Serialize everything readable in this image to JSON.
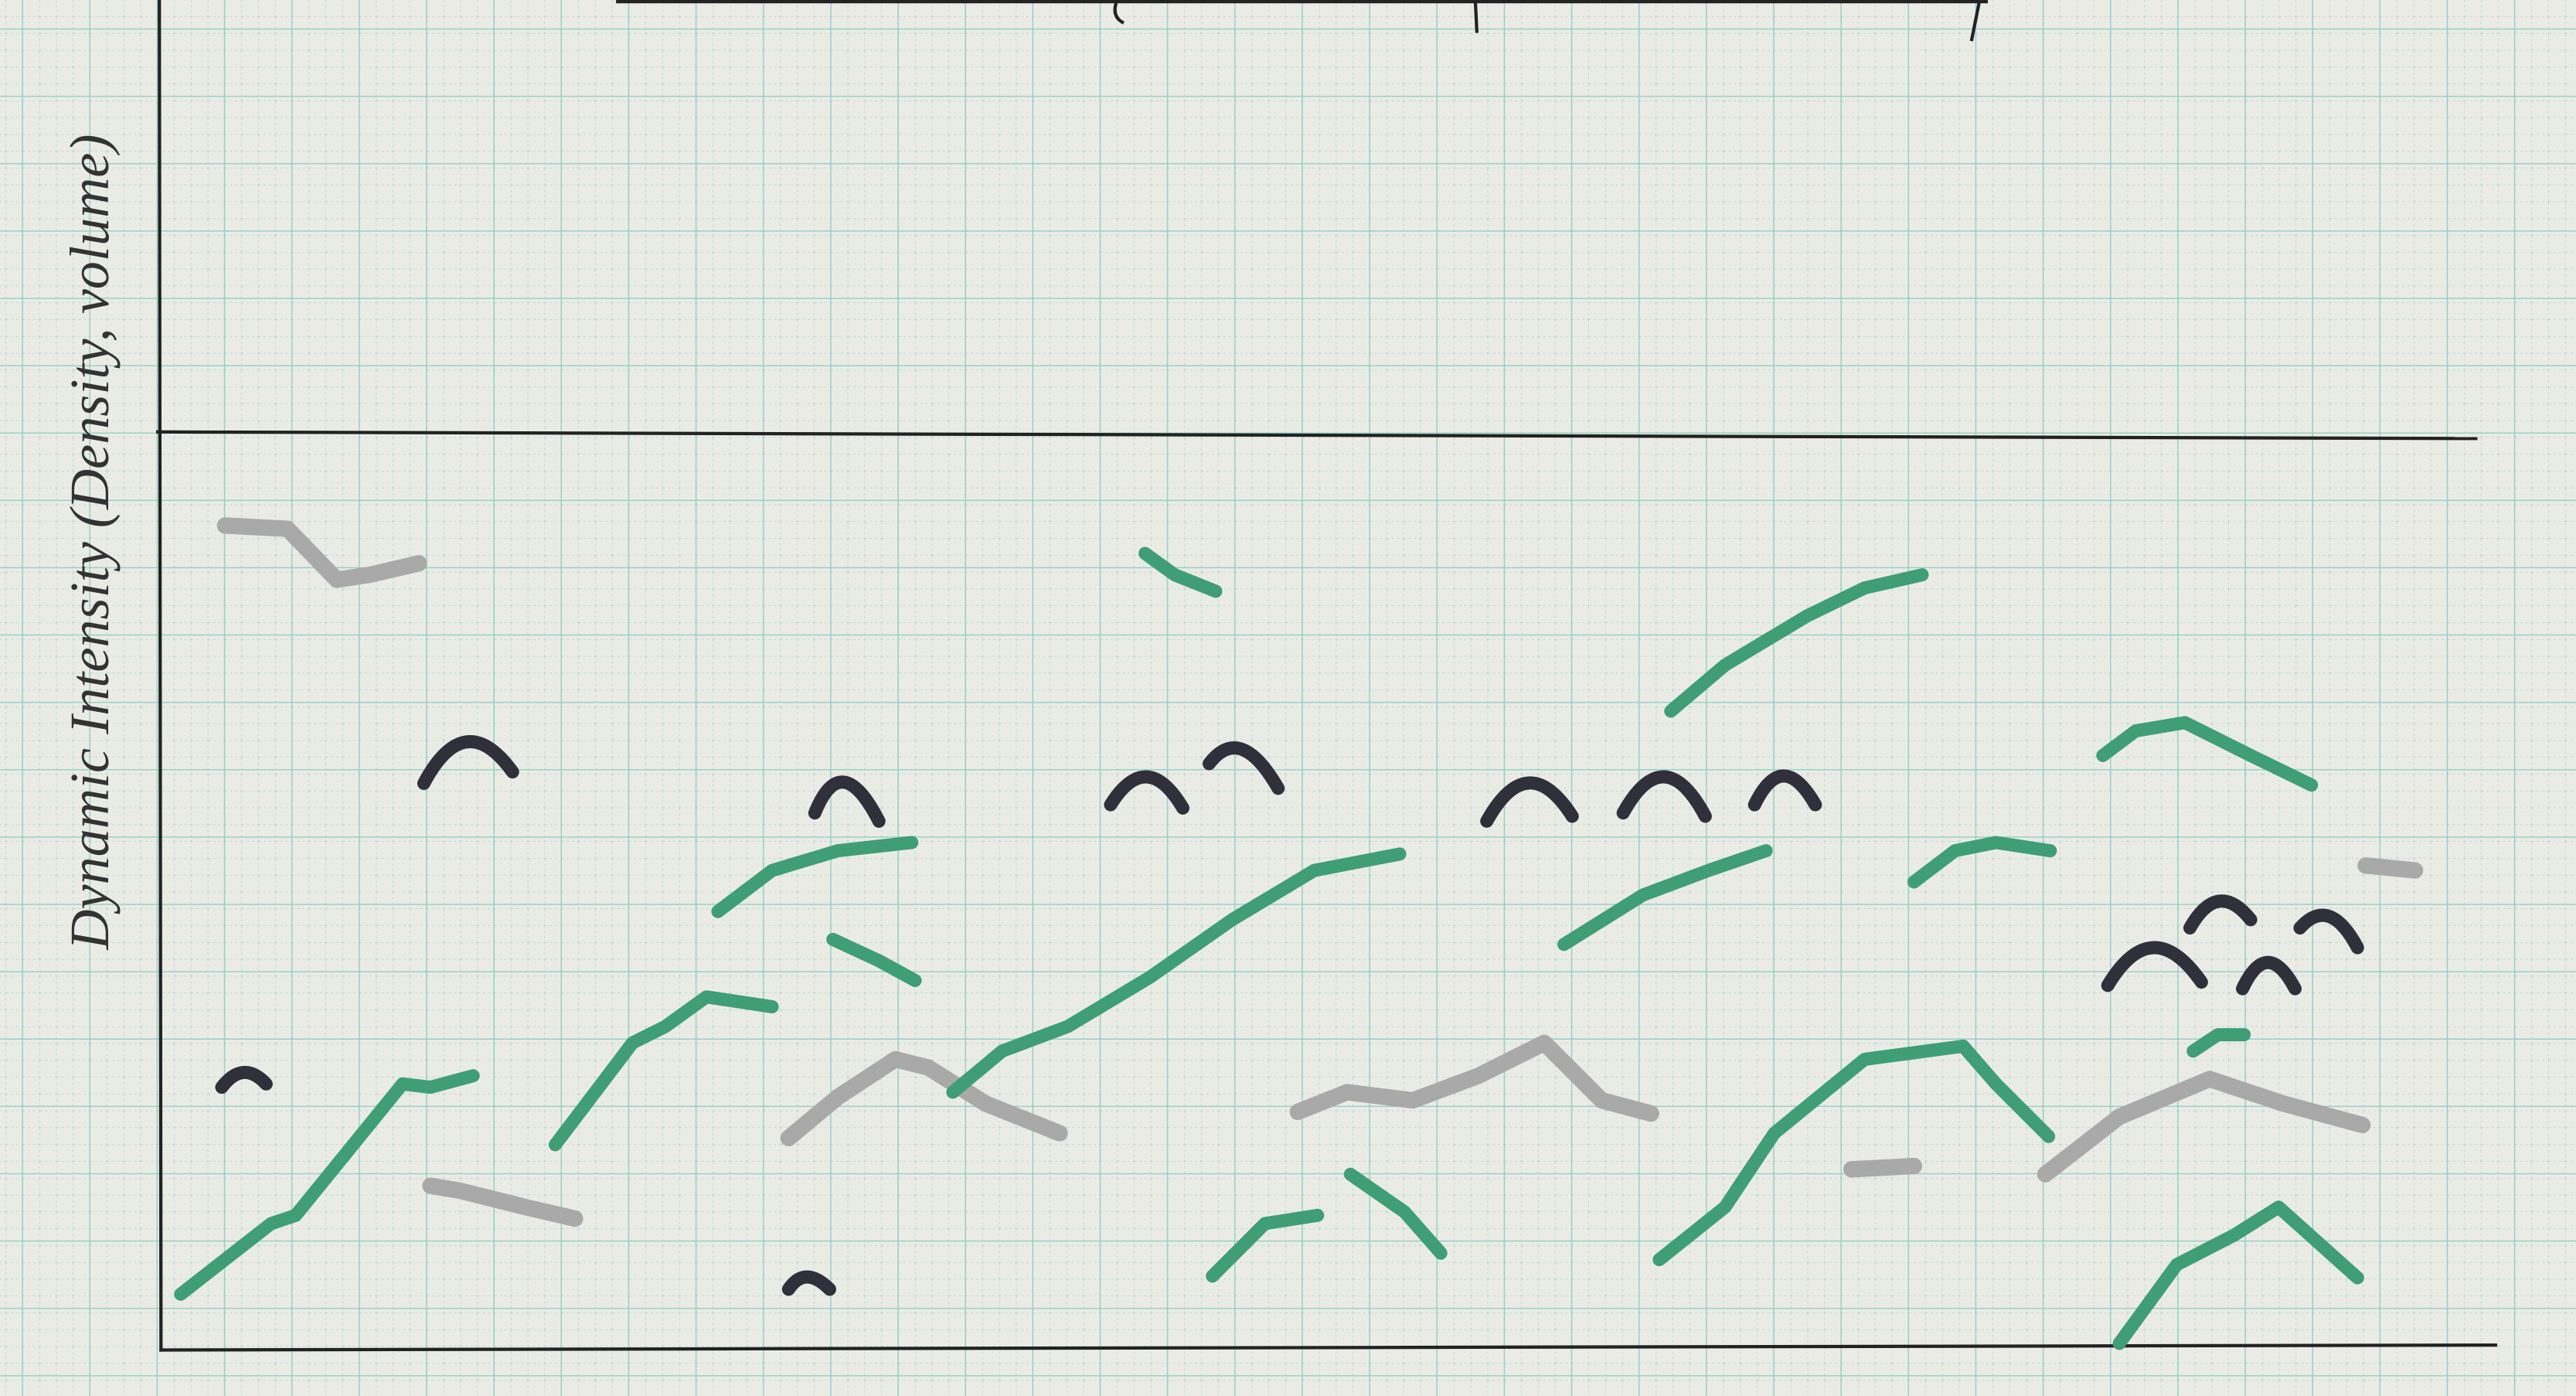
{
  "axis_label": "Dynamic Intensity (Density, volume)"
}
